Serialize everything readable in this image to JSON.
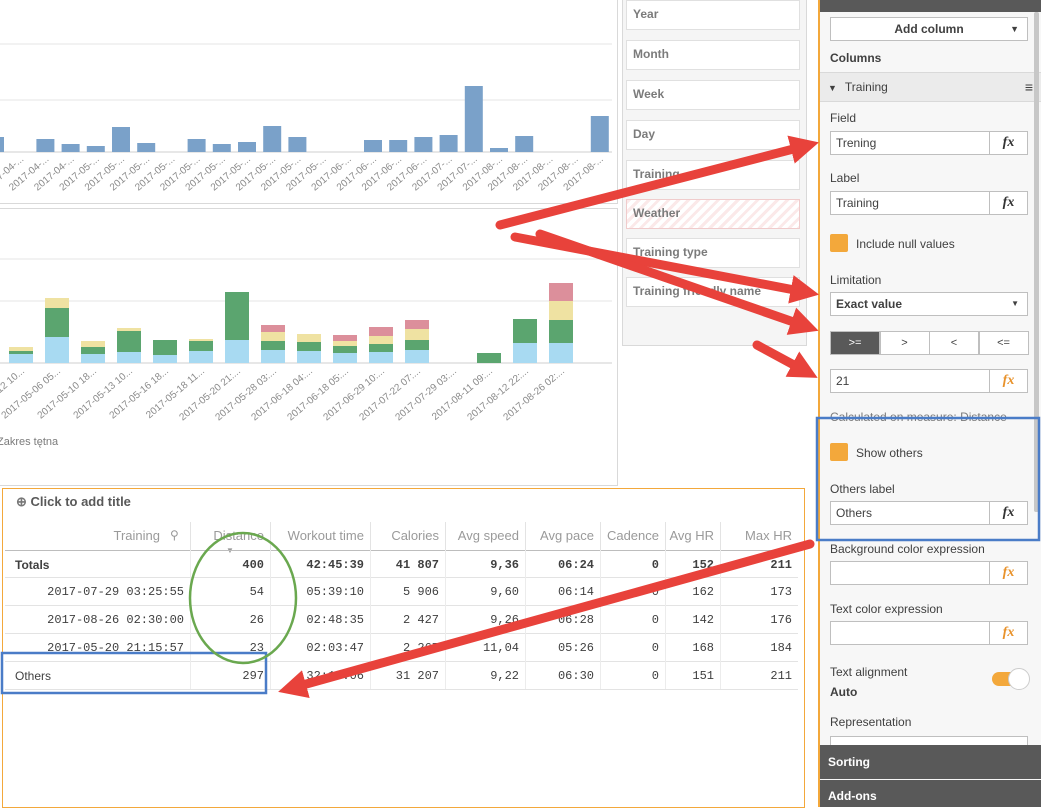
{
  "top_chart": {
    "type": "bar",
    "color": "#7aa1c9",
    "categories": [
      "2017-04-...",
      "2017-04-...",
      "2017-04-...",
      "2017-04-...",
      "2017-05-...",
      "2017-05-...",
      "2017-05-...",
      "2017-05-...",
      "2017-05-...",
      "2017-05-...",
      "2017-05-...",
      "2017-05-...",
      "2017-05-...",
      "2017-05-...",
      "2017-06-...",
      "2017-06-...",
      "2017-06-...",
      "2017-06-...",
      "2017-07-...",
      "2017-07-...",
      "2017-08-...",
      "2017-08-...",
      "2017-08-...",
      "2017-08-...",
      "2017-08-..."
    ],
    "values": [
      15,
      null,
      13,
      8,
      6,
      25,
      9,
      null,
      13,
      8,
      10,
      26,
      15,
      null,
      null,
      12,
      12,
      15,
      17,
      66,
      4,
      16,
      null,
      null,
      36
    ]
  },
  "bottom_chart": {
    "type": "stacked-bar",
    "y_label": "Zakres tętna",
    "categories": [
      "12 10...",
      "2017-05-06 05...",
      "2017-05-10 18...",
      "2017-05-13 10...",
      "2017-05-16 18...",
      "2017-05-18 11...",
      "2017-05-20 21:...",
      "2017-05-28 03:...",
      "2017-06-18 04:...",
      "2017-06-18 05:...",
      "2017-06-29 10:...",
      "2017-07-22 07:...",
      "2017-07-29 03:...",
      "2017-08-11 09:...",
      "2017-08-12 22:...",
      "2017-08-26 02:...",
      null
    ],
    "series": [
      {
        "color": "#a8daf2",
        "values": [
          9,
          26,
          9,
          11,
          8,
          12,
          23,
          13,
          12,
          10,
          11,
          13,
          null,
          0,
          20,
          20,
          null
        ]
      },
      {
        "color": "#5ba56f",
        "values": [
          3,
          29,
          7,
          21,
          15,
          10,
          48,
          9,
          9,
          7,
          8,
          10,
          null,
          10,
          24,
          23,
          null
        ]
      },
      {
        "color": "#efe2a2",
        "values": [
          4,
          10,
          6,
          3,
          0,
          2,
          0,
          9,
          8,
          5,
          8,
          11,
          null,
          0,
          0,
          19,
          null
        ]
      },
      {
        "color": "#dc8f9b",
        "values": [
          0,
          0,
          0,
          0,
          0,
          0,
          0,
          7,
          0,
          6,
          9,
          9,
          null,
          0,
          0,
          18,
          null
        ]
      }
    ]
  },
  "fields": [
    "Year",
    "Month",
    "Week",
    "Day",
    "Training",
    "Weather",
    "Training type",
    "Training friendly name"
  ],
  "table": {
    "title": "Click to add title",
    "headers": [
      "Training",
      "Distance",
      "Workout time",
      "Calories",
      "Avg speed",
      "Avg pace",
      "Cadence",
      "Avg HR",
      "Max HR"
    ],
    "totals": [
      "Totals",
      "400",
      "42:45:39",
      "41 807",
      "9,36",
      "06:24",
      "0",
      "152",
      "211"
    ],
    "rows": [
      [
        "2017-07-29 03:25:55",
        "54",
        "05:39:10",
        "5 906",
        "9,60",
        "06:14",
        "0",
        "162",
        "173"
      ],
      [
        "2017-08-26 02:30:00",
        "26",
        "02:48:35",
        "2 427",
        "9,26",
        "06:28",
        "0",
        "142",
        "176"
      ],
      [
        "2017-05-20 21:15:57",
        "23",
        "02:03:47",
        "2 267",
        "11,04",
        "05:26",
        "0",
        "168",
        "184"
      ],
      [
        "Others",
        "297",
        "32:14:06",
        "31 207",
        "9,22",
        "06:30",
        "0",
        "151",
        "211"
      ]
    ]
  },
  "properties": {
    "add_column": "Add column",
    "columns_heading": "Columns",
    "section": "Training",
    "field_label": "Field",
    "field_value": "Trening",
    "label_label": "Label",
    "label_value": "Training",
    "include_null": "Include null values",
    "limitation_label": "Limitation",
    "limitation_value": "Exact value",
    "operators": [
      ">=",
      ">",
      "<",
      "<="
    ],
    "limit_value": "21",
    "calculated_on": "Calculated on measure: Distance",
    "show_others": "Show others",
    "others_label_label": "Others label",
    "others_label_value": "Others",
    "bg_color_label": "Background color expression",
    "text_color_label": "Text color expression",
    "text_alignment_label": "Text alignment",
    "text_alignment_value": "Auto",
    "representation_label": "Representation",
    "fx": "fx",
    "sorting": "Sorting",
    "addons": "Add-ons"
  }
}
